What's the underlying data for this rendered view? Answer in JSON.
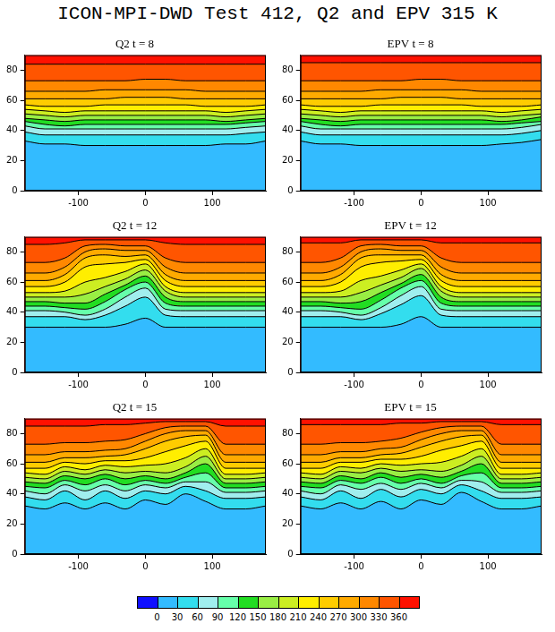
{
  "title": "ICON-MPI-DWD Test 412, Q2 and EPV 315 K",
  "colorbar": {
    "ticks": [
      0,
      30,
      60,
      90,
      120,
      150,
      180,
      210,
      240,
      270,
      300,
      330,
      360
    ],
    "colors": [
      "#1010ff",
      "#33bbff",
      "#33ddee",
      "#a0eeee",
      "#66ffaa",
      "#22dd22",
      "#99ee44",
      "#ccee22",
      "#ffee00",
      "#ffcc00",
      "#ffaa00",
      "#ff8800",
      "#ff5500",
      "#ff1100"
    ]
  },
  "chart_data": [
    {
      "type": "contour",
      "title": "Q2 t = 8",
      "grid": false,
      "x": [
        -180,
        -150,
        -120,
        -90,
        -60,
        -30,
        0,
        30,
        60,
        90,
        120,
        150,
        180
      ],
      "xlim": [
        -180,
        180
      ],
      "xticks": [
        -100,
        0,
        100
      ],
      "ylim": [
        0,
        90
      ],
      "yticks": [
        0,
        20,
        40,
        60,
        80
      ],
      "levels": [
        30,
        60,
        90,
        120,
        150,
        180,
        210,
        240,
        270,
        300,
        330,
        360
      ],
      "lines": [
        [
          33,
          31,
          31,
          30,
          30,
          30,
          30,
          30,
          30,
          30,
          31,
          31,
          33
        ],
        [
          39,
          37,
          37,
          37,
          37,
          37,
          37,
          37,
          37,
          37,
          37,
          38,
          39
        ],
        [
          43,
          41,
          41,
          41,
          41,
          41,
          41,
          41,
          41,
          41,
          41,
          42,
          43
        ],
        [
          46,
          44,
          43,
          44,
          44,
          44,
          44,
          44,
          44,
          44,
          44,
          45,
          46
        ],
        [
          48,
          47,
          46,
          47,
          47,
          47,
          47,
          47,
          47,
          47,
          46,
          47,
          48
        ],
        [
          51,
          50,
          49,
          50,
          50,
          50,
          50,
          50,
          50,
          50,
          49,
          50,
          51
        ],
        [
          54,
          53,
          52,
          53,
          53,
          53,
          53,
          53,
          53,
          53,
          52,
          53,
          54
        ],
        [
          57,
          56,
          56,
          56,
          57,
          57,
          57,
          57,
          57,
          56,
          56,
          56,
          57
        ],
        [
          61,
          61,
          61,
          61,
          61,
          62,
          62,
          62,
          61,
          61,
          61,
          61,
          61
        ],
        [
          66,
          66,
          66,
          66,
          67,
          67,
          67,
          67,
          67,
          66,
          66,
          66,
          66
        ],
        [
          73,
          73,
          73,
          73,
          73,
          73,
          74,
          74,
          73,
          73,
          73,
          73,
          73
        ],
        [
          84,
          84,
          84,
          84,
          84,
          84,
          84,
          84,
          84,
          84,
          84,
          84,
          84
        ]
      ]
    },
    {
      "type": "contour",
      "title": "EPV t = 8",
      "grid": false,
      "x": [
        -180,
        -150,
        -120,
        -90,
        -60,
        -30,
        0,
        30,
        60,
        90,
        120,
        150,
        180
      ],
      "xlim": [
        -180,
        180
      ],
      "xticks": [
        -100,
        0,
        100
      ],
      "ylim": [
        0,
        90
      ],
      "yticks": [
        0,
        20,
        40,
        60,
        80
      ],
      "levels": [
        30,
        60,
        90,
        120,
        150,
        180,
        210,
        240,
        270,
        300,
        330,
        360
      ],
      "lines": [
        [
          33,
          31,
          31,
          30,
          30,
          30,
          30,
          30,
          30,
          30,
          31,
          32,
          34
        ],
        [
          39,
          37,
          37,
          37,
          37,
          37,
          37,
          37,
          37,
          37,
          37,
          38,
          40
        ],
        [
          43,
          41,
          41,
          41,
          41,
          41,
          41,
          41,
          41,
          41,
          41,
          42,
          44
        ],
        [
          46,
          44,
          43,
          44,
          44,
          44,
          44,
          44,
          44,
          44,
          44,
          45,
          46
        ],
        [
          48,
          47,
          46,
          47,
          47,
          47,
          47,
          47,
          47,
          47,
          46,
          47,
          49
        ],
        [
          51,
          50,
          49,
          50,
          50,
          50,
          50,
          50,
          50,
          50,
          49,
          50,
          51
        ],
        [
          54,
          53,
          52,
          53,
          53,
          53,
          53,
          53,
          53,
          53,
          52,
          53,
          54
        ],
        [
          57,
          56,
          56,
          56,
          57,
          57,
          57,
          57,
          57,
          56,
          56,
          56,
          57
        ],
        [
          61,
          61,
          61,
          61,
          61,
          62,
          62,
          62,
          61,
          61,
          61,
          61,
          61
        ],
        [
          66,
          66,
          66,
          66,
          67,
          67,
          67,
          67,
          67,
          66,
          66,
          66,
          66
        ],
        [
          73,
          73,
          73,
          73,
          73,
          73,
          74,
          74,
          73,
          73,
          73,
          73,
          73
        ],
        [
          85,
          85,
          85,
          85,
          85,
          85,
          85,
          85,
          85,
          85,
          85,
          85,
          85
        ]
      ]
    },
    {
      "type": "contour",
      "title": "Q2 t = 12",
      "grid": false,
      "x": [
        -180,
        -150,
        -120,
        -90,
        -60,
        -30,
        0,
        30,
        60,
        90,
        120,
        150,
        180
      ],
      "xlim": [
        -180,
        180
      ],
      "xticks": [
        -100,
        0,
        100
      ],
      "ylim": [
        0,
        90
      ],
      "yticks": [
        0,
        20,
        40,
        60,
        80
      ],
      "levels": [
        30,
        60,
        90,
        120,
        150,
        180,
        210,
        240,
        270,
        300,
        330,
        360
      ],
      "lines": [
        [
          30,
          30,
          30,
          30,
          30,
          32,
          36,
          30,
          30,
          30,
          30,
          30,
          30
        ],
        [
          37,
          37,
          37,
          35,
          38,
          44,
          50,
          38,
          37,
          37,
          37,
          37,
          37
        ],
        [
          41,
          41,
          40,
          38,
          42,
          50,
          56,
          42,
          41,
          41,
          41,
          41,
          41
        ],
        [
          44,
          44,
          43,
          42,
          47,
          55,
          60,
          46,
          44,
          44,
          44,
          44,
          44
        ],
        [
          47,
          47,
          46,
          46,
          52,
          58,
          64,
          50,
          47,
          47,
          47,
          47,
          47
        ],
        [
          50,
          50,
          50,
          52,
          57,
          62,
          68,
          54,
          50,
          50,
          50,
          50,
          50
        ],
        [
          53,
          53,
          54,
          60,
          63,
          67,
          72,
          57,
          53,
          53,
          53,
          53,
          53
        ],
        [
          57,
          57,
          60,
          70,
          72,
          73,
          75,
          61,
          57,
          57,
          57,
          57,
          57
        ],
        [
          61,
          61,
          65,
          76,
          78,
          77,
          78,
          65,
          61,
          61,
          61,
          61,
          61
        ],
        [
          66,
          66,
          70,
          80,
          82,
          81,
          81,
          70,
          66,
          66,
          66,
          66,
          66
        ],
        [
          73,
          73,
          76,
          84,
          85,
          84,
          84,
          76,
          73,
          73,
          73,
          73,
          73
        ],
        [
          85,
          85,
          86,
          88,
          88,
          88,
          88,
          86,
          85,
          85,
          85,
          85,
          85
        ]
      ]
    },
    {
      "type": "contour",
      "title": "EPV t = 12",
      "grid": false,
      "x": [
        -180,
        -150,
        -120,
        -90,
        -60,
        -30,
        0,
        30,
        60,
        90,
        120,
        150,
        180
      ],
      "xlim": [
        -180,
        180
      ],
      "xticks": [
        -100,
        0,
        100
      ],
      "ylim": [
        0,
        90
      ],
      "yticks": [
        0,
        20,
        40,
        60,
        80
      ],
      "levels": [
        30,
        60,
        90,
        120,
        150,
        180,
        210,
        240,
        270,
        300,
        330,
        360
      ],
      "lines": [
        [
          30,
          30,
          30,
          30,
          30,
          32,
          37,
          30,
          30,
          30,
          30,
          30,
          30
        ],
        [
          37,
          37,
          37,
          35,
          39,
          45,
          51,
          38,
          37,
          37,
          37,
          37,
          37
        ],
        [
          41,
          41,
          40,
          38,
          43,
          51,
          57,
          42,
          41,
          41,
          41,
          41,
          41
        ],
        [
          44,
          44,
          43,
          42,
          48,
          56,
          61,
          46,
          44,
          44,
          44,
          44,
          44
        ],
        [
          47,
          47,
          46,
          47,
          53,
          59,
          65,
          50,
          47,
          47,
          47,
          47,
          47
        ],
        [
          50,
          50,
          50,
          53,
          58,
          63,
          69,
          54,
          50,
          50,
          50,
          50,
          50
        ],
        [
          53,
          53,
          54,
          61,
          64,
          68,
          72,
          57,
          53,
          53,
          53,
          53,
          53
        ],
        [
          57,
          57,
          60,
          70,
          73,
          74,
          75,
          61,
          57,
          57,
          57,
          57,
          57
        ],
        [
          61,
          61,
          65,
          76,
          78,
          78,
          78,
          65,
          61,
          61,
          61,
          61,
          61
        ],
        [
          66,
          66,
          70,
          80,
          82,
          81,
          81,
          70,
          66,
          66,
          66,
          66,
          66
        ],
        [
          73,
          73,
          76,
          84,
          85,
          84,
          84,
          76,
          73,
          73,
          73,
          73,
          73
        ],
        [
          86,
          86,
          86,
          88,
          88,
          88,
          88,
          86,
          86,
          86,
          86,
          86,
          86
        ]
      ]
    },
    {
      "type": "contour",
      "title": "Q2 t = 15",
      "grid": false,
      "x": [
        -180,
        -150,
        -120,
        -90,
        -60,
        -30,
        0,
        30,
        60,
        90,
        120,
        150,
        180
      ],
      "xlim": [
        -180,
        180
      ],
      "xticks": [
        -100,
        0,
        100
      ],
      "ylim": [
        0,
        90
      ],
      "yticks": [
        0,
        20,
        40,
        60,
        80
      ],
      "levels": [
        30,
        60,
        90,
        120,
        150,
        180,
        210,
        240,
        270,
        300,
        330,
        360
      ],
      "lines": [
        [
          32,
          30,
          34,
          30,
          34,
          30,
          36,
          33,
          40,
          35,
          30,
          30,
          32
        ],
        [
          38,
          36,
          42,
          36,
          42,
          37,
          42,
          40,
          45,
          42,
          37,
          37,
          38
        ],
        [
          42,
          40,
          46,
          42,
          46,
          42,
          46,
          44,
          48,
          48,
          41,
          41,
          42
        ],
        [
          45,
          44,
          49,
          46,
          50,
          46,
          49,
          47,
          51,
          54,
          44,
          44,
          45
        ],
        [
          48,
          47,
          52,
          50,
          53,
          50,
          52,
          50,
          54,
          60,
          47,
          47,
          48
        ],
        [
          51,
          50,
          55,
          53,
          56,
          54,
          55,
          54,
          58,
          65,
          50,
          50,
          51
        ],
        [
          54,
          53,
          58,
          56,
          59,
          58,
          59,
          60,
          64,
          70,
          53,
          53,
          54
        ],
        [
          57,
          57,
          61,
          60,
          62,
          62,
          64,
          68,
          72,
          75,
          57,
          57,
          57
        ],
        [
          61,
          61,
          64,
          64,
          65,
          66,
          70,
          75,
          78,
          79,
          61,
          61,
          61
        ],
        [
          66,
          66,
          68,
          68,
          69,
          70,
          75,
          80,
          82,
          82,
          66,
          66,
          66
        ],
        [
          73,
          73,
          74,
          74,
          75,
          76,
          80,
          84,
          85,
          85,
          73,
          73,
          73
        ],
        [
          85,
          85,
          85,
          85,
          86,
          86,
          87,
          88,
          88,
          88,
          85,
          85,
          85
        ]
      ]
    },
    {
      "type": "contour",
      "title": "EPV t = 15",
      "grid": false,
      "x": [
        -180,
        -150,
        -120,
        -90,
        -60,
        -30,
        0,
        30,
        60,
        90,
        120,
        150,
        180
      ],
      "xlim": [
        -180,
        180
      ],
      "xticks": [
        -100,
        0,
        100
      ],
      "ylim": [
        0,
        90
      ],
      "yticks": [
        0,
        20,
        40,
        60,
        80
      ],
      "levels": [
        30,
        60,
        90,
        120,
        150,
        180,
        210,
        240,
        270,
        300,
        330,
        360
      ],
      "lines": [
        [
          32,
          30,
          34,
          30,
          35,
          30,
          36,
          33,
          41,
          35,
          30,
          30,
          32
        ],
        [
          38,
          36,
          42,
          37,
          43,
          38,
          43,
          40,
          46,
          42,
          37,
          37,
          38
        ],
        [
          42,
          40,
          46,
          43,
          47,
          43,
          47,
          44,
          49,
          48,
          41,
          41,
          42
        ],
        [
          45,
          44,
          49,
          47,
          51,
          47,
          50,
          47,
          52,
          54,
          44,
          44,
          45
        ],
        [
          48,
          47,
          52,
          50,
          54,
          51,
          53,
          51,
          55,
          60,
          47,
          47,
          48
        ],
        [
          51,
          50,
          55,
          54,
          57,
          55,
          56,
          55,
          59,
          65,
          50,
          50,
          51
        ],
        [
          54,
          53,
          58,
          57,
          60,
          59,
          60,
          61,
          65,
          70,
          53,
          53,
          54
        ],
        [
          57,
          57,
          61,
          61,
          63,
          63,
          65,
          69,
          72,
          75,
          57,
          57,
          57
        ],
        [
          61,
          61,
          64,
          64,
          66,
          67,
          71,
          75,
          78,
          79,
          61,
          61,
          61
        ],
        [
          66,
          66,
          68,
          68,
          70,
          71,
          76,
          80,
          82,
          82,
          66,
          66,
          66
        ],
        [
          73,
          73,
          74,
          74,
          75,
          77,
          81,
          84,
          85,
          85,
          73,
          73,
          73
        ],
        [
          86,
          86,
          86,
          86,
          86,
          87,
          87,
          88,
          88,
          88,
          86,
          86,
          86
        ]
      ]
    }
  ]
}
